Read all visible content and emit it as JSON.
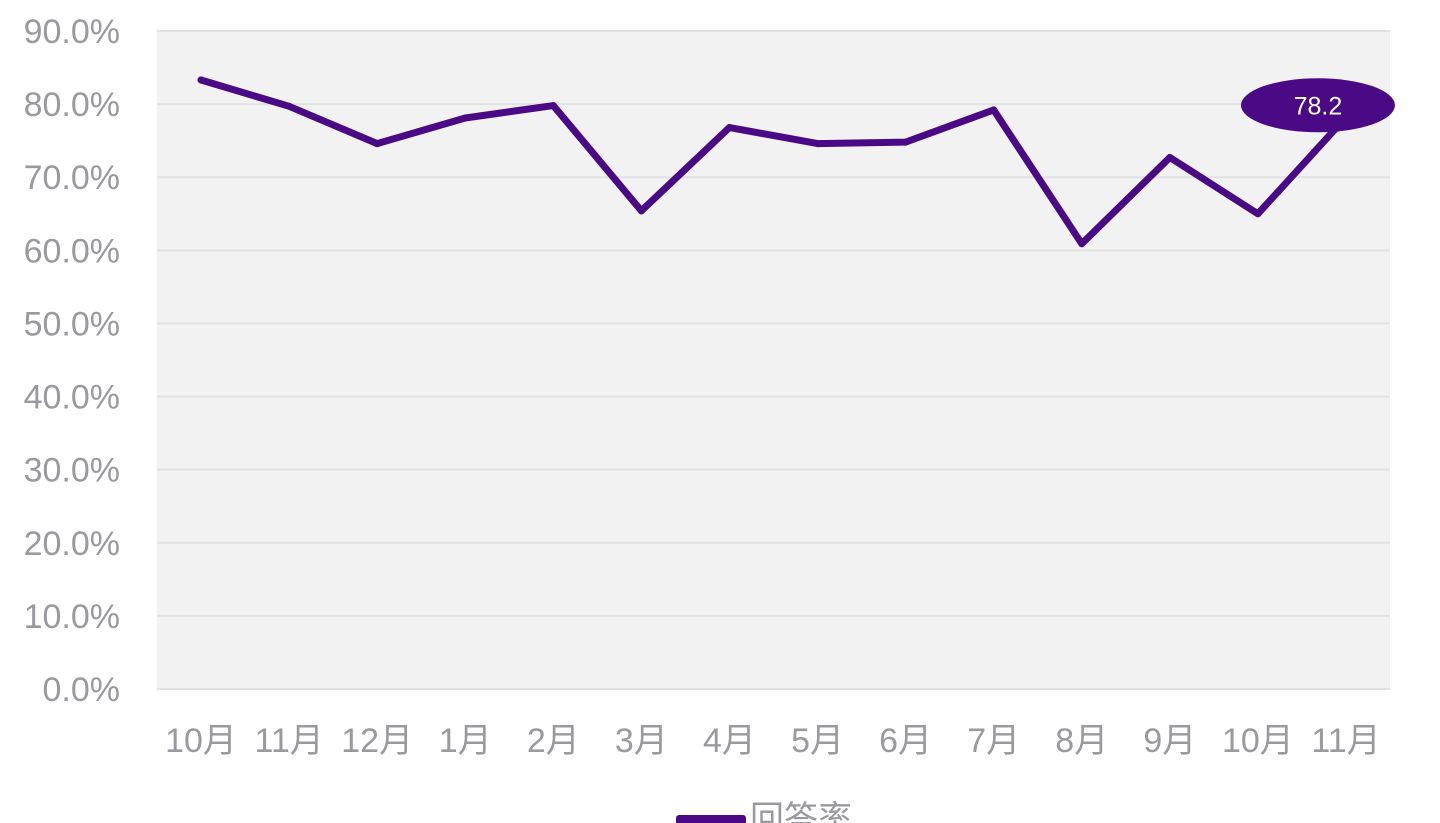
{
  "chart_data": {
    "type": "line",
    "title": "",
    "xlabel": "",
    "ylabel": "",
    "categories": [
      "10月",
      "11月",
      "12月",
      "1月",
      "2月",
      "3月",
      "4月",
      "5月",
      "6月",
      "7月",
      "8月",
      "9月",
      "10月",
      "11月"
    ],
    "series": [
      {
        "name": "回答率",
        "color": "#4b0a85",
        "values": [
          83.3,
          79.7,
          74.6,
          78.1,
          79.8,
          65.4,
          76.8,
          74.6,
          74.8,
          79.2,
          60.9,
          72.7,
          65.0,
          78.2
        ]
      }
    ],
    "ylim": [
      0,
      90
    ],
    "yticks": [
      "0.0%",
      "10.0%",
      "20.0%",
      "30.0%",
      "40.0%",
      "50.0%",
      "60.0%",
      "70.0%",
      "80.0%",
      "90.0%"
    ],
    "grid": true,
    "legend": "bottom",
    "annotations": [
      {
        "category_index": 13,
        "text": "78.2"
      }
    ]
  }
}
